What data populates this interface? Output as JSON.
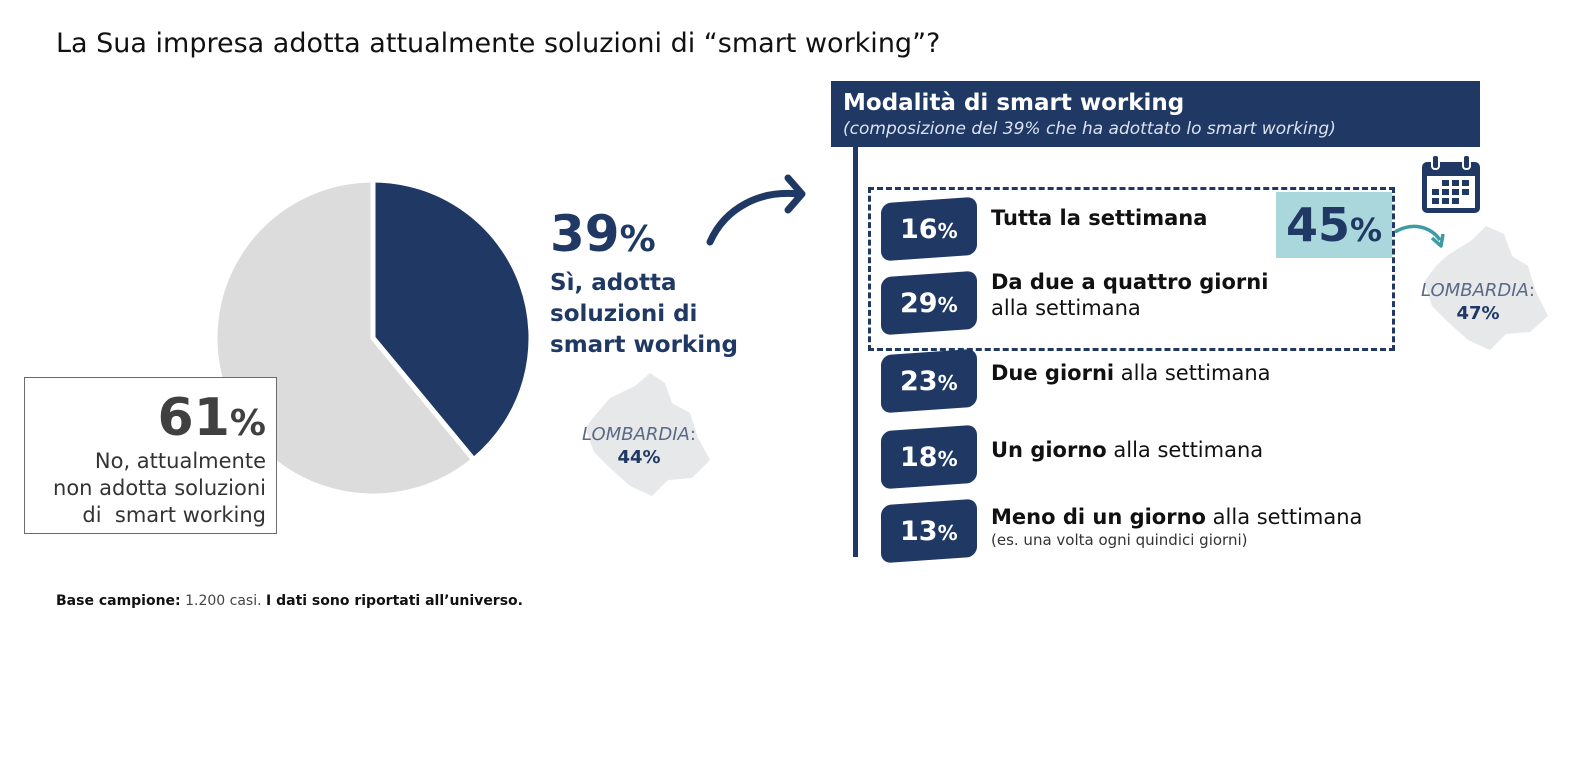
{
  "page": {
    "title": "La Sua impresa adotta attualmente soluzioni di “smart working”?",
    "footnote": {
      "bold_label": "Base campione:",
      "base_value": "1.200 casi.",
      "bold_note": "I dati sono riportati all’universo."
    }
  },
  "colors": {
    "navy": "#1f3864",
    "pie_rest": "#dcdcdc",
    "accent_teal": "#a9d7dc",
    "region_map": "#e7e8ea"
  },
  "chart_data": [
    {
      "type": "pie",
      "title": "",
      "slices": [
        {
          "label": "Sì, adotta soluzioni di smart working",
          "value": 39,
          "color": "#1f3864"
        },
        {
          "label": "No, attualmente non adotta soluzioni di smart working",
          "value": 61,
          "color": "#dcdcdc"
        }
      ]
    },
    {
      "type": "table",
      "title": "Modalità di smart working",
      "subtitle": "(composizione del 39% che ha adottato lo smart working)",
      "rows": [
        {
          "value": 16,
          "bold": "Tutta la settimana",
          "rest": "",
          "note": ""
        },
        {
          "value": 29,
          "bold": "Da due a quattro giorni",
          "rest": " alla settimana",
          "note": ""
        },
        {
          "value": 23,
          "bold": "Due giorni",
          "rest": " alla settimana",
          "note": ""
        },
        {
          "value": 18,
          "bold": "Un giorno",
          "rest": " alla settimana",
          "note": ""
        },
        {
          "value": 13,
          "bold": "Meno di un giorno",
          "rest": " alla settimana",
          "note": "(es. una volta ogni quindici giorni)"
        }
      ],
      "highlight_total": 45
    }
  ],
  "yes_callout": {
    "value": "39",
    "unit": "%",
    "label": "Sì, adotta soluzioni di smart working"
  },
  "no_callout": {
    "value": "61",
    "unit": "%",
    "label_lines": [
      "No, attualmente",
      "non adotta soluzioni",
      "di  smart working"
    ]
  },
  "lombardia_pie": {
    "name": "LOMBARDIA",
    "colon": ":",
    "value": "44%"
  },
  "lombardia_panel": {
    "name": "LOMBARDIA",
    "colon": ":",
    "value": "47%"
  },
  "icons": [
    "arrow-curved-icon",
    "calendar-icon",
    "arrow-small-icon",
    "map-lombardia-icon"
  ]
}
